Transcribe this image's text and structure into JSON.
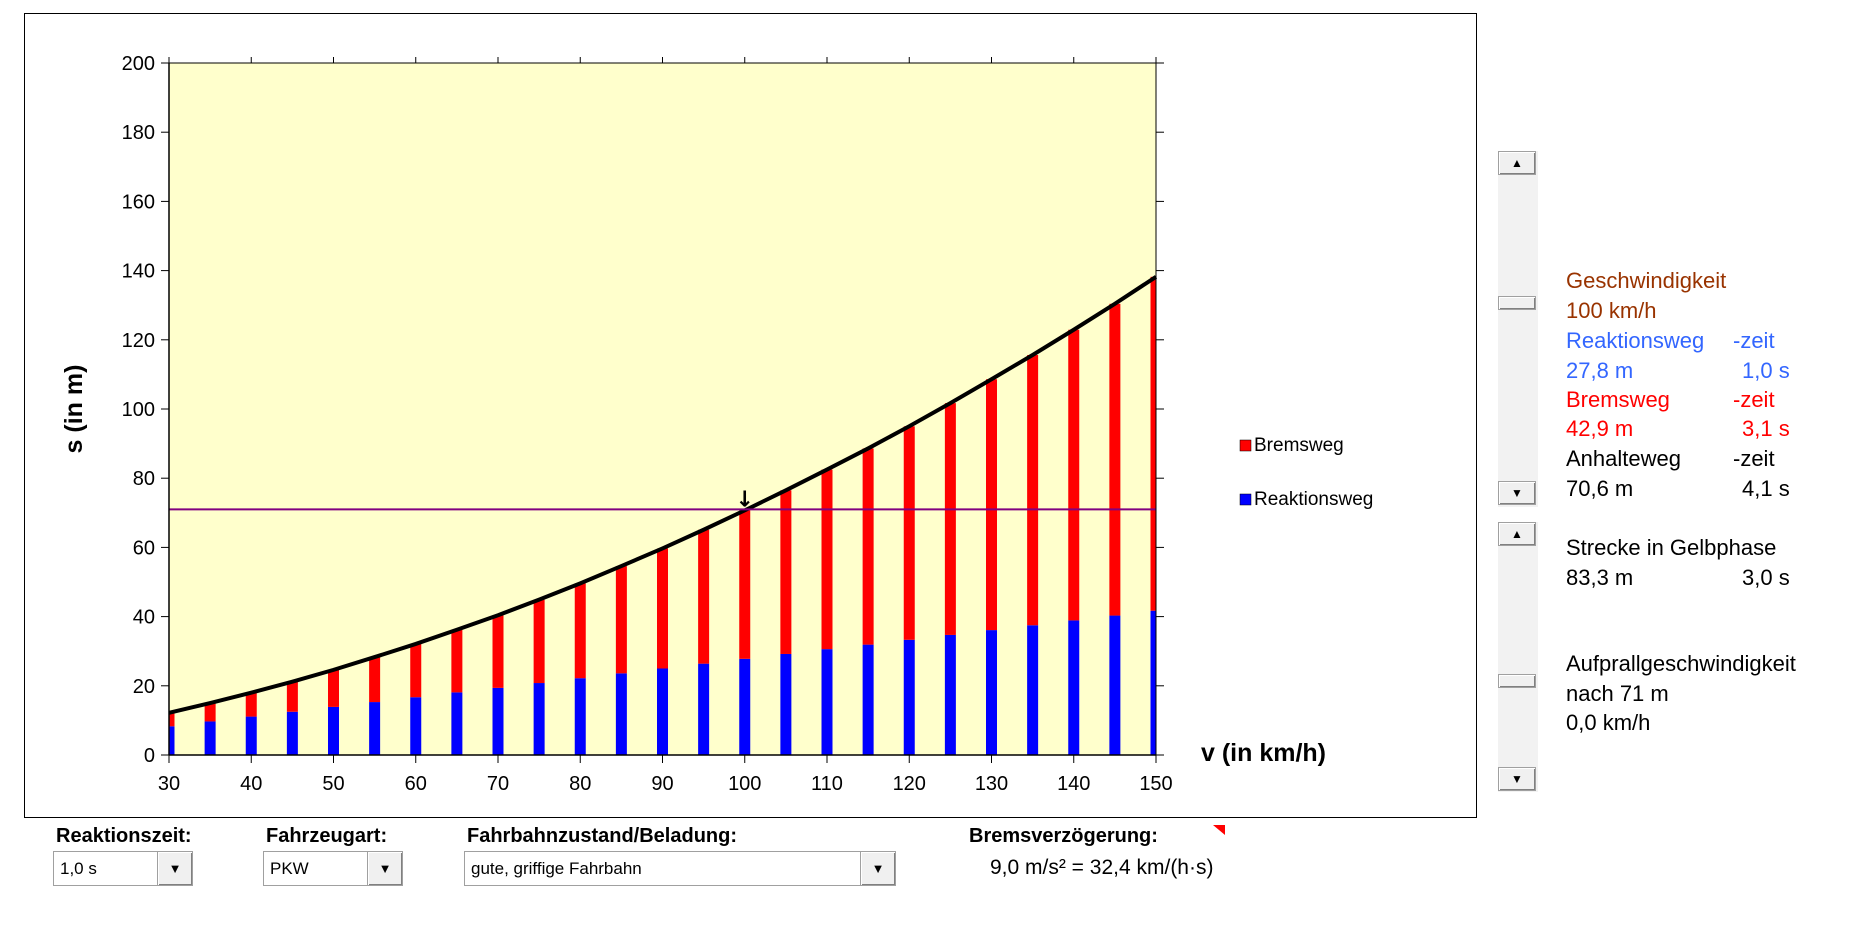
{
  "chart_data": {
    "type": "bar",
    "stacked": true,
    "x": [
      30,
      35,
      40,
      45,
      50,
      55,
      60,
      65,
      70,
      75,
      80,
      85,
      90,
      95,
      100,
      105,
      110,
      115,
      120,
      125,
      130,
      135,
      140,
      145,
      150
    ],
    "series": [
      {
        "name": "Reaktionsweg",
        "color": "#0000ff",
        "values": [
          8.3,
          9.7,
          11.1,
          12.5,
          13.9,
          15.3,
          16.7,
          18.1,
          19.4,
          20.8,
          22.2,
          23.6,
          25.0,
          26.4,
          27.8,
          29.2,
          30.6,
          31.9,
          33.3,
          34.7,
          36.1,
          37.5,
          38.9,
          40.3,
          41.7
        ]
      },
      {
        "name": "Bremsweg",
        "color": "#ff0000",
        "values": [
          3.9,
          5.3,
          6.9,
          8.7,
          10.7,
          13.0,
          15.4,
          18.1,
          21.0,
          24.1,
          27.4,
          31.0,
          34.7,
          38.7,
          42.9,
          47.3,
          51.9,
          56.7,
          61.7,
          67.0,
          72.5,
          78.1,
          84.0,
          90.1,
          96.5
        ]
      }
    ],
    "curve": {
      "color": "#000000"
    },
    "hline": {
      "y": 71,
      "color": "#800080"
    },
    "marker": {
      "x": 100,
      "glyph": "↓"
    },
    "xlabel": "v (in km/h)",
    "ylabel": "s (in m)",
    "xlim": [
      30,
      150
    ],
    "ylim": [
      0,
      200
    ],
    "y_ticks": [
      0,
      20,
      40,
      60,
      80,
      100,
      120,
      140,
      160,
      180,
      200
    ],
    "x_ticks": [
      30,
      40,
      50,
      60,
      70,
      80,
      90,
      100,
      110,
      120,
      130,
      140,
      150
    ],
    "plot_bg": "#ffffcc",
    "legend_placement": "right",
    "legend_order": [
      "Bremsweg",
      "Reaktionsweg"
    ]
  },
  "info": {
    "geschwindigkeit_label": "Geschwindigkeit",
    "geschwindigkeit_value": "100 km/h",
    "reaktionsweg_label": "Reaktionsweg",
    "reaktionszeit_label": "-zeit",
    "reaktionsweg_value": "27,8 m",
    "reaktionszeit_value": "1,0 s",
    "bremsweg_label": "Bremsweg",
    "bremszeit_label": "-zeit",
    "bremsweg_value": "42,9 m",
    "bremszeit_value": "3,1 s",
    "anhalteweg_label": "Anhalteweg",
    "anhaltezeit_label": "-zeit",
    "anhalteweg_value": "70,6 m",
    "anhaltezeit_value": "4,1 s",
    "gelbphase_label": "Strecke in Gelbphase",
    "gelbphase_strecke": "83,3 m",
    "gelbphase_zeit": "3,0 s",
    "aufprall_label": "Aufprallgeschwindigkeit",
    "aufprall_after": "nach 71 m",
    "aufprall_value": "0,0 km/h"
  },
  "colors": {
    "geschwindigkeit": "#993300",
    "reaktion": "#3366ff",
    "brems": "#ff0000",
    "anhalte": "#000000"
  },
  "controls": {
    "reaktionszeit_label": "Reaktionszeit:",
    "reaktionszeit_value": "1,0 s",
    "fahrzeugart_label": "Fahrzeugart:",
    "fahrzeugart_value": "PKW",
    "fahrbahn_label": "Fahrbahnzustand/Beladung:",
    "fahrbahn_value": "gute, griffige Fahrbahn",
    "bremsverzoegerung_label": "Bremsverzögerung:",
    "bremsverzoegerung_value": "9,0 m/s² = 32,4 km/(h·s)"
  },
  "icons": {
    "scroll_up": "scroll-up-arrow-icon",
    "scroll_down": "scroll-down-arrow-icon",
    "dropdown": "dropdown-arrow-icon"
  }
}
